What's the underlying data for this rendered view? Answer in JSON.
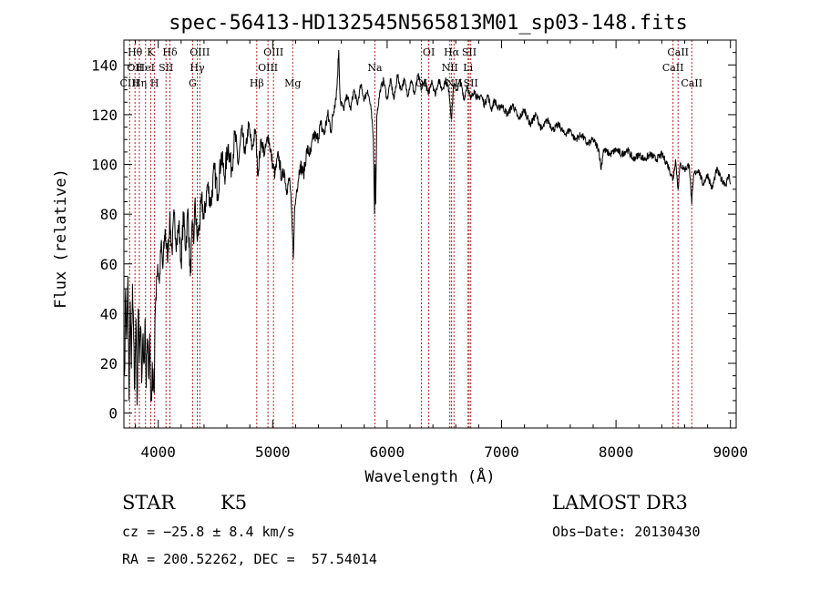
{
  "chart_data": {
    "type": "line",
    "title": "spec-56413-HD132545N565813M01_sp03-148.fits",
    "xlabel": "Wavelength (Å)",
    "ylabel": "Flux (relative)",
    "xlim": [
      3700,
      9050
    ],
    "ylim": [
      -6,
      150
    ],
    "xticks": [
      4000,
      5000,
      6000,
      7000,
      8000,
      9000
    ],
    "yticks": [
      0,
      20,
      40,
      60,
      80,
      100,
      120,
      140
    ],
    "grid": false,
    "series": [
      {
        "name": "flux",
        "color": "#000000",
        "anchors": [
          [
            3705,
            15
          ],
          [
            3715,
            50
          ],
          [
            3725,
            30
          ],
          [
            3735,
            55
          ],
          [
            3745,
            5
          ],
          [
            3755,
            45
          ],
          [
            3765,
            18
          ],
          [
            3775,
            52
          ],
          [
            3785,
            30
          ],
          [
            3795,
            10
          ],
          [
            3805,
            38
          ],
          [
            3815,
            3
          ],
          [
            3825,
            42
          ],
          [
            3835,
            20
          ],
          [
            3845,
            35
          ],
          [
            3855,
            12
          ],
          [
            3865,
            30
          ],
          [
            3875,
            20
          ],
          [
            3885,
            38
          ],
          [
            3895,
            10
          ],
          [
            3905,
            30
          ],
          [
            3915,
            15
          ],
          [
            3925,
            32
          ],
          [
            3935,
            5
          ],
          [
            3945,
            12
          ],
          [
            3955,
            18
          ],
          [
            3965,
            8
          ],
          [
            3975,
            42
          ],
          [
            3985,
            55
          ],
          [
            3995,
            60
          ],
          [
            4010,
            52
          ],
          [
            4025,
            68
          ],
          [
            4040,
            58
          ],
          [
            4060,
            74
          ],
          [
            4080,
            62
          ],
          [
            4100,
            78
          ],
          [
            4120,
            65
          ],
          [
            4140,
            80
          ],
          [
            4160,
            68
          ],
          [
            4180,
            76
          ],
          [
            4200,
            60
          ],
          [
            4220,
            80
          ],
          [
            4240,
            66
          ],
          [
            4260,
            82
          ],
          [
            4280,
            55
          ],
          [
            4300,
            76
          ],
          [
            4310,
            68
          ],
          [
            4320,
            85
          ],
          [
            4340,
            70
          ],
          [
            4360,
            75
          ],
          [
            4380,
            86
          ],
          [
            4400,
            78
          ],
          [
            4430,
            92
          ],
          [
            4460,
            84
          ],
          [
            4490,
            98
          ],
          [
            4520,
            88
          ],
          [
            4550,
            104
          ],
          [
            4580,
            95
          ],
          [
            4610,
            108
          ],
          [
            4640,
            98
          ],
          [
            4670,
            112
          ],
          [
            4700,
            100
          ],
          [
            4730,
            114
          ],
          [
            4760,
            104
          ],
          [
            4790,
            116
          ],
          [
            4820,
            106
          ],
          [
            4850,
            114
          ],
          [
            4870,
            96
          ],
          [
            4900,
            110
          ],
          [
            4930,
            104
          ],
          [
            4960,
            112
          ],
          [
            5000,
            100
          ],
          [
            5020,
            96
          ],
          [
            5050,
            104
          ],
          [
            5080,
            94
          ],
          [
            5100,
            98
          ],
          [
            5120,
            90
          ],
          [
            5150,
            94
          ],
          [
            5170,
            75
          ],
          [
            5180,
            62
          ],
          [
            5190,
            80
          ],
          [
            5210,
            90
          ],
          [
            5240,
            100
          ],
          [
            5270,
            96
          ],
          [
            5300,
            106
          ],
          [
            5330,
            104
          ],
          [
            5360,
            112
          ],
          [
            5390,
            110
          ],
          [
            5420,
            116
          ],
          [
            5450,
            112
          ],
          [
            5480,
            120
          ],
          [
            5510,
            114
          ],
          [
            5540,
            124
          ],
          [
            5560,
            130
          ],
          [
            5577,
            146
          ],
          [
            5590,
            126
          ],
          [
            5620,
            122
          ],
          [
            5650,
            128
          ],
          [
            5680,
            122
          ],
          [
            5710,
            130
          ],
          [
            5740,
            124
          ],
          [
            5770,
            132
          ],
          [
            5800,
            126
          ],
          [
            5830,
            130
          ],
          [
            5860,
            122
          ],
          [
            5880,
            110
          ],
          [
            5890,
            80
          ],
          [
            5895,
            100
          ],
          [
            5900,
            84
          ],
          [
            5910,
            120
          ],
          [
            5940,
            130
          ],
          [
            5970,
            134
          ],
          [
            6000,
            126
          ],
          [
            6030,
            134
          ],
          [
            6060,
            126
          ],
          [
            6090,
            136
          ],
          [
            6120,
            130
          ],
          [
            6150,
            134
          ],
          [
            6180,
            128
          ],
          [
            6210,
            134
          ],
          [
            6240,
            128
          ],
          [
            6270,
            136
          ],
          [
            6300,
            130
          ],
          [
            6330,
            134
          ],
          [
            6360,
            128
          ],
          [
            6390,
            134
          ],
          [
            6420,
            128
          ],
          [
            6450,
            134
          ],
          [
            6480,
            130
          ],
          [
            6510,
            134
          ],
          [
            6540,
            130
          ],
          [
            6563,
            118
          ],
          [
            6580,
            132
          ],
          [
            6610,
            130
          ],
          [
            6640,
            134
          ],
          [
            6670,
            126
          ],
          [
            6700,
            132
          ],
          [
            6730,
            126
          ],
          [
            6760,
            130
          ],
          [
            6790,
            126
          ],
          [
            6820,
            128
          ],
          [
            6850,
            124
          ],
          [
            6880,
            128
          ],
          [
            6910,
            122
          ],
          [
            6940,
            126
          ],
          [
            6970,
            122
          ],
          [
            7000,
            124
          ],
          [
            7050,
            120
          ],
          [
            7100,
            124
          ],
          [
            7150,
            118
          ],
          [
            7200,
            122
          ],
          [
            7250,
            116
          ],
          [
            7300,
            120
          ],
          [
            7350,
            114
          ],
          [
            7400,
            118
          ],
          [
            7450,
            114
          ],
          [
            7500,
            116
          ],
          [
            7550,
            112
          ],
          [
            7600,
            114
          ],
          [
            7640,
            110
          ],
          [
            7700,
            112
          ],
          [
            7750,
            108
          ],
          [
            7800,
            110
          ],
          [
            7850,
            106
          ],
          [
            7870,
            98
          ],
          [
            7890,
            106
          ],
          [
            7950,
            104
          ],
          [
            8000,
            106
          ],
          [
            8050,
            104
          ],
          [
            8100,
            106
          ],
          [
            8150,
            102
          ],
          [
            8200,
            104
          ],
          [
            8250,
            102
          ],
          [
            8300,
            104
          ],
          [
            8350,
            102
          ],
          [
            8400,
            104
          ],
          [
            8450,
            100
          ],
          [
            8498,
            94
          ],
          [
            8520,
            102
          ],
          [
            8542,
            90
          ],
          [
            8560,
            100
          ],
          [
            8600,
            98
          ],
          [
            8640,
            100
          ],
          [
            8662,
            84
          ],
          [
            8680,
            96
          ],
          [
            8720,
            98
          ],
          [
            8760,
            92
          ],
          [
            8800,
            96
          ],
          [
            8840,
            90
          ],
          [
            8880,
            98
          ],
          [
            8920,
            94
          ],
          [
            8960,
            92
          ],
          [
            8990,
            96
          ],
          [
            9000,
            92
          ]
        ]
      }
    ],
    "line_markers": [
      {
        "wl": 3750,
        "labels": [
          "CIII"
        ],
        "rows": [
          2
        ]
      },
      {
        "wl": 3797,
        "labels": [
          "Hθ",
          "OII"
        ],
        "rows": [
          0,
          1
        ]
      },
      {
        "wl": 3835,
        "labels": [
          "Hη"
        ],
        "rows": [
          2
        ]
      },
      {
        "wl": 3889,
        "labels": [
          "HeI"
        ],
        "rows": [
          1
        ]
      },
      {
        "wl": 3934,
        "labels": [
          "K"
        ],
        "rows": [
          0
        ]
      },
      {
        "wl": 3968,
        "labels": [
          "H"
        ],
        "rows": [
          2
        ]
      },
      {
        "wl": 4068,
        "labels": [
          "SII"
        ],
        "rows": [
          1
        ]
      },
      {
        "wl": 4102,
        "labels": [
          "Hδ"
        ],
        "rows": [
          0
        ]
      },
      {
        "wl": 4300,
        "labels": [
          "G"
        ],
        "rows": [
          2
        ]
      },
      {
        "wl": 4341,
        "labels": [
          "Hγ"
        ],
        "rows": [
          1
        ]
      },
      {
        "wl": 4363,
        "labels": [
          "OIII"
        ],
        "rows": [
          0
        ]
      },
      {
        "wl": 4861,
        "labels": [
          "Hβ"
        ],
        "rows": [
          2
        ]
      },
      {
        "wl": 4959,
        "labels": [
          "OIII"
        ],
        "rows": [
          1
        ]
      },
      {
        "wl": 5007,
        "labels": [
          "OIII"
        ],
        "rows": [
          0
        ]
      },
      {
        "wl": 5175,
        "labels": [
          "Mg"
        ],
        "rows": [
          2
        ]
      },
      {
        "wl": 5893,
        "labels": [
          "Na"
        ],
        "rows": [
          1
        ]
      },
      {
        "wl": 6300,
        "labels": [
          "OI"
        ],
        "rows": [
          2
        ]
      },
      {
        "wl": 6364,
        "labels": [
          "OI"
        ],
        "rows": [
          0
        ]
      },
      {
        "wl": 6548,
        "labels": [
          "NII"
        ],
        "rows": [
          1
        ]
      },
      {
        "wl": 6563,
        "labels": [
          "Hα"
        ],
        "rows": [
          0
        ]
      },
      {
        "wl": 6584,
        "labels": [
          "NII"
        ],
        "rows": [
          2
        ]
      },
      {
        "wl": 6707,
        "labels": [
          "Li"
        ],
        "rows": [
          1
        ]
      },
      {
        "wl": 6717,
        "labels": [
          "SII"
        ],
        "rows": [
          0
        ]
      },
      {
        "wl": 6731,
        "labels": [
          "SII"
        ],
        "rows": [
          2
        ]
      },
      {
        "wl": 8498,
        "labels": [
          "CaII"
        ],
        "rows": [
          1
        ]
      },
      {
        "wl": 8542,
        "labels": [
          "CaII"
        ],
        "rows": [
          0
        ]
      },
      {
        "wl": 8662,
        "labels": [
          "CaII"
        ],
        "rows": [
          2
        ]
      }
    ]
  },
  "info": {
    "object_class": "STAR",
    "subclass": "K5",
    "survey": "LAMOST DR3",
    "redshift_line": "cz = −25.8 ± 8.4 km/s",
    "obs_date": "Obs−Date: 20130430",
    "coords": "RA = 200.52262, DEC =  57.54014"
  },
  "colors": {
    "axes": "#000000",
    "spectrum": "#000000",
    "markers": "#b22222",
    "background": "#ffffff"
  }
}
